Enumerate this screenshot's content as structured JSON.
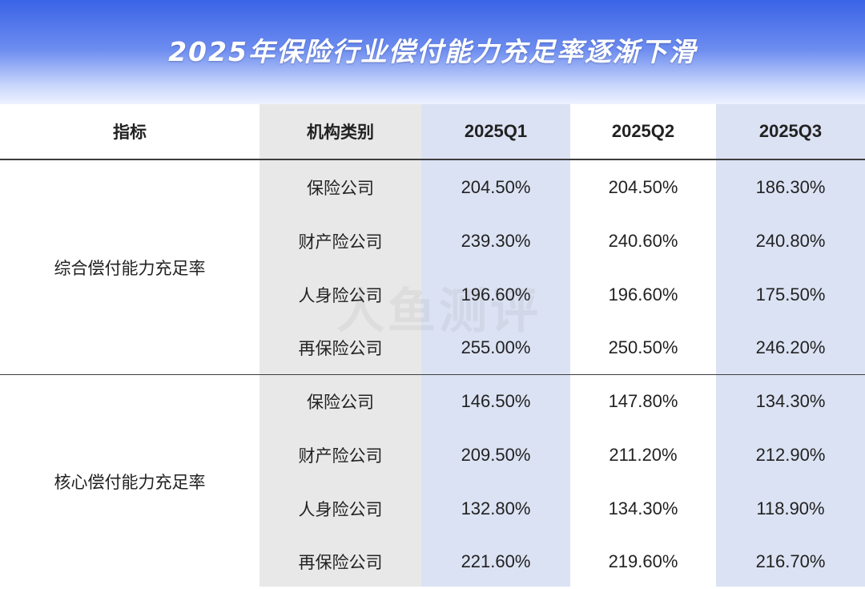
{
  "title": "2025年保险行业偿付能力充足率逐渐下滑",
  "watermark": "人鱼测评",
  "chart_data": {
    "type": "table",
    "columns": [
      "指标",
      "机构类别",
      "2025Q1",
      "2025Q2",
      "2025Q3"
    ],
    "groups": [
      {
        "indicator": "综合偿付能力充足率",
        "rows": [
          {
            "category": "保险公司",
            "values": [
              "204.50%",
              "204.50%",
              "186.30%"
            ]
          },
          {
            "category": "财产险公司",
            "values": [
              "239.30%",
              "240.60%",
              "240.80%"
            ]
          },
          {
            "category": "人身险公司",
            "values": [
              "196.60%",
              "196.60%",
              "175.50%"
            ]
          },
          {
            "category": "再保险公司",
            "values": [
              "255.00%",
              "250.50%",
              "246.20%"
            ]
          }
        ]
      },
      {
        "indicator": "核心偿付能力充足率",
        "rows": [
          {
            "category": "保险公司",
            "values": [
              "146.50%",
              "147.80%",
              "134.30%"
            ]
          },
          {
            "category": "财产险公司",
            "values": [
              "209.50%",
              "211.20%",
              "212.90%"
            ]
          },
          {
            "category": "人身险公司",
            "values": [
              "132.80%",
              "134.30%",
              "118.90%"
            ]
          },
          {
            "category": "再保险公司",
            "values": [
              "221.60%",
              "219.60%",
              "216.70%"
            ]
          }
        ]
      }
    ]
  }
}
